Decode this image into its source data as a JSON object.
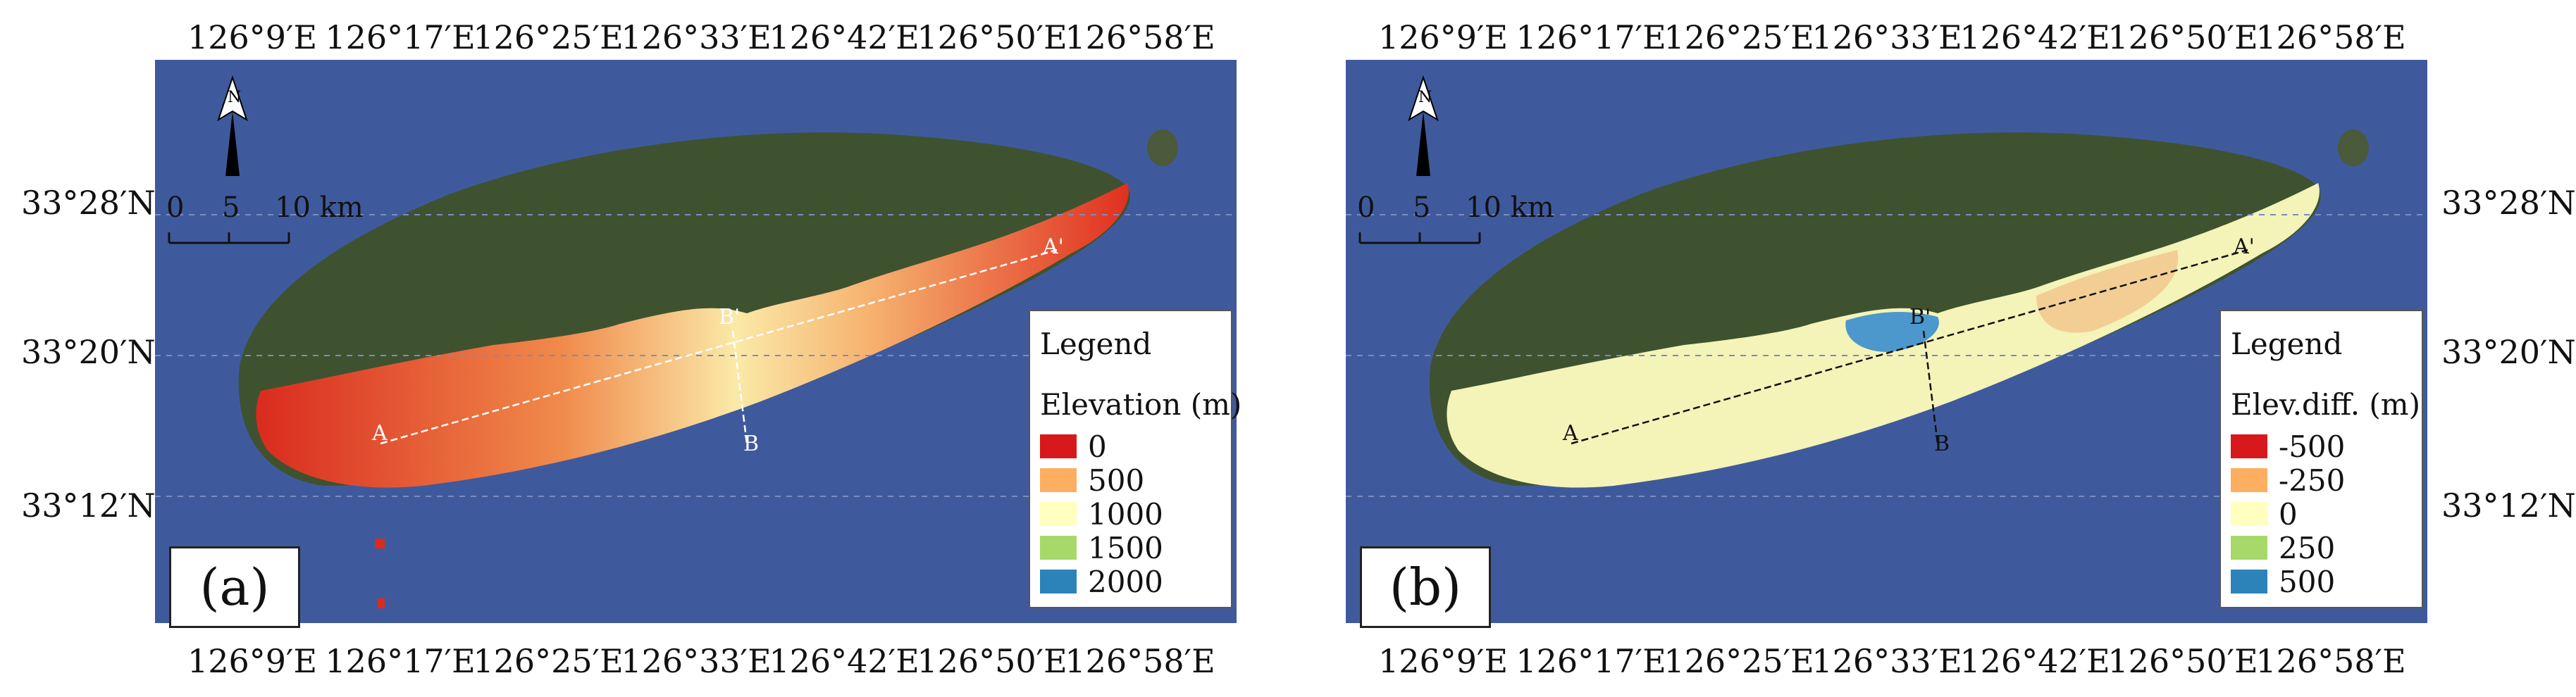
{
  "panel_a": {
    "label": "(a)",
    "legend": {
      "title": "Legend",
      "subtitle": "Elevation (m)",
      "items": [
        {
          "label": "0",
          "color": "#d7191c"
        },
        {
          "label": "500",
          "color": "#fdae61"
        },
        {
          "label": "1000",
          "color": "#ffffbf"
        },
        {
          "label": "1500",
          "color": "#a6d96a"
        },
        {
          "label": "2000",
          "color": "#2b83ba"
        }
      ]
    },
    "profile_points": {
      "a": "A",
      "a_prime": "A'",
      "b": "B",
      "b_prime": "B'"
    }
  },
  "panel_b": {
    "label": "(b)",
    "legend": {
      "title": "Legend",
      "subtitle": "Elev.diff. (m)",
      "items": [
        {
          "label": "-500",
          "color": "#d7191c"
        },
        {
          "label": "-250",
          "color": "#fdae61"
        },
        {
          "label": "0",
          "color": "#ffffbf"
        },
        {
          "label": "250",
          "color": "#a6d96a"
        },
        {
          "label": "500",
          "color": "#2b83ba"
        }
      ]
    },
    "profile_points": {
      "a": "A",
      "a_prime": "A'",
      "b": "B",
      "b_prime": "B'"
    }
  },
  "lon_ticks": [
    "126°9′E",
    "126°17′E",
    "126°25′E",
    "126°33′E",
    "126°42′E",
    "126°50′E",
    "126°58′E"
  ],
  "lat_ticks": [
    "33°28′N",
    "33°20′N",
    "33°12′N"
  ],
  "scale_bar": {
    "labels": [
      "0",
      "5",
      "10 km"
    ]
  },
  "north_arrow": {
    "label": "N"
  },
  "colors": {
    "ocean": "#3f5a9c",
    "island": "#3e5230",
    "legend_border": "#555555"
  }
}
